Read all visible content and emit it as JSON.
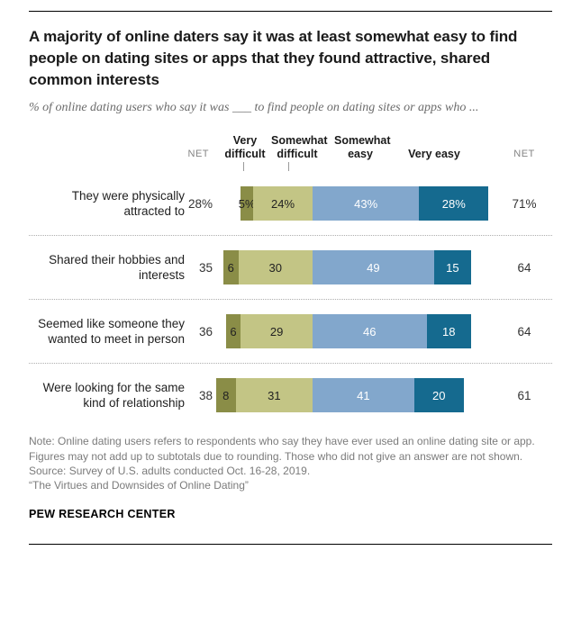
{
  "header": {
    "title": "A majority of online daters say it was at least somewhat easy to find people on dating sites or apps that they found attractive, shared common interests",
    "subtitle": "% of online dating users who say it was ___ to find people on dating sites or apps who ..."
  },
  "chart_data": {
    "type": "bar",
    "stacked": true,
    "orientation": "horizontal",
    "diverging": true,
    "net_header": "NET",
    "legend": [
      "Very difficult",
      "Somewhat difficult",
      "Somewhat easy",
      "Very easy"
    ],
    "colors": {
      "very_difficult": "#8a8d47",
      "somewhat_difficult": "#c3c585",
      "somewhat_easy": "#82a7cc",
      "very_easy": "#156a8f"
    },
    "rows": [
      {
        "label": "They were physically attracted to",
        "net_difficult": "28%",
        "net_easy": "71%",
        "values": [
          5,
          24,
          43,
          28
        ],
        "segment_labels": [
          "5%",
          "24%",
          "43%",
          "28%"
        ]
      },
      {
        "label": "Shared their hobbies and interests",
        "net_difficult": "35",
        "net_easy": "64",
        "values": [
          6,
          30,
          49,
          15
        ],
        "segment_labels": [
          "6",
          "30",
          "49",
          "15"
        ]
      },
      {
        "label": "Seemed like someone they wanted to meet in person",
        "net_difficult": "36",
        "net_easy": "64",
        "values": [
          6,
          29,
          46,
          18
        ],
        "segment_labels": [
          "6",
          "29",
          "46",
          "18"
        ]
      },
      {
        "label": "Were looking for the same kind of relationship",
        "net_difficult": "38",
        "net_easy": "61",
        "values": [
          8,
          31,
          41,
          20
        ],
        "segment_labels": [
          "8",
          "31",
          "41",
          "20"
        ]
      }
    ]
  },
  "footer": {
    "note": "Note: Online dating users refers to respondents who say they have ever used an online dating site or app. Figures may not add up to subtotals due to rounding. Those who did not give an answer are not shown.",
    "source": "Source: Survey of U.S. adults conducted Oct. 16-28, 2019.",
    "quote": "“The Virtues and Downsides of Online Dating”",
    "brand": "PEW RESEARCH CENTER"
  }
}
